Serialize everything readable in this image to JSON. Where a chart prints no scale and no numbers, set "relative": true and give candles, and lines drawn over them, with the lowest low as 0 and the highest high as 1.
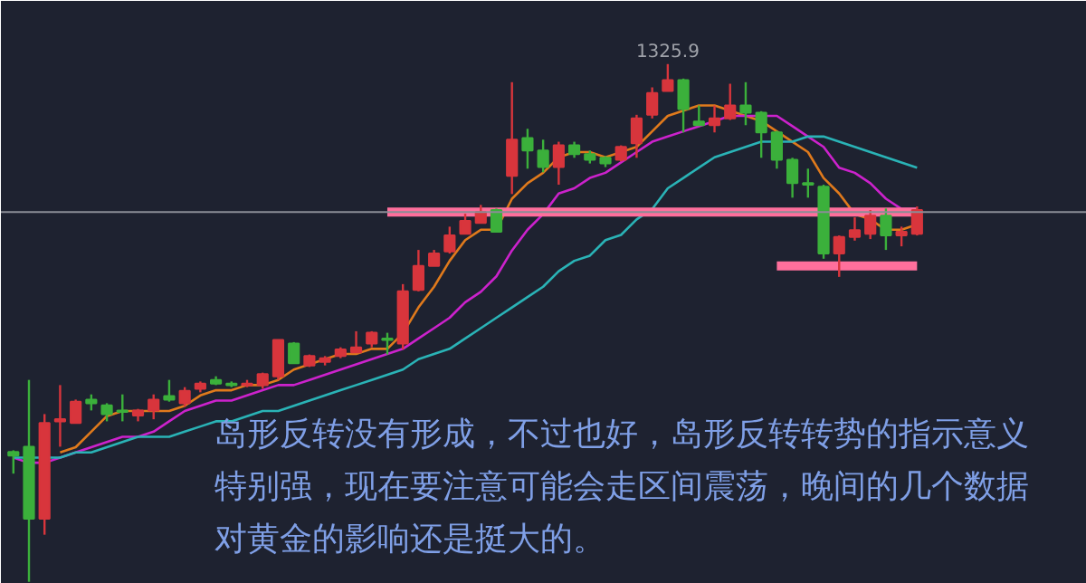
{
  "chart_data": {
    "type": "candlestick",
    "relative": true,
    "categories": [
      null,
      null,
      null,
      null,
      null,
      null,
      null,
      null,
      null,
      null,
      null,
      null,
      null,
      null,
      null,
      null,
      null,
      null,
      null,
      null,
      null,
      null,
      null,
      null,
      null,
      null,
      null,
      null,
      null,
      null,
      null,
      null,
      null,
      null,
      null,
      null,
      null,
      null,
      null,
      null,
      null,
      null,
      null,
      null,
      null,
      null,
      null,
      null,
      null,
      null,
      null,
      null,
      null,
      null,
      null,
      null,
      null,
      null,
      null
    ],
    "ohlc": [
      [
        0.251,
        0.254,
        0.209,
        0.244
      ],
      [
        0.261,
        0.39,
        0.0,
        0.122
      ],
      [
        0.122,
        0.324,
        0.091,
        0.307
      ],
      [
        0.31,
        0.38,
        0.261,
        0.314
      ],
      [
        0.307,
        0.352,
        0.307,
        0.348
      ],
      [
        0.352,
        0.362,
        0.331,
        0.345
      ],
      [
        0.341,
        0.345,
        0.31,
        0.324
      ],
      [
        0.331,
        0.362,
        0.31,
        0.328
      ],
      [
        0.321,
        0.334,
        0.31,
        0.331
      ],
      [
        0.331,
        0.362,
        0.314,
        0.352
      ],
      [
        0.359,
        0.39,
        0.348,
        0.352
      ],
      [
        0.345,
        0.376,
        0.338,
        0.369
      ],
      [
        0.373,
        0.387,
        0.366,
        0.383
      ],
      [
        0.39,
        0.397,
        0.38,
        0.383
      ],
      [
        0.383,
        0.387,
        0.376,
        0.38
      ],
      [
        0.38,
        0.39,
        0.376,
        0.383
      ],
      [
        0.38,
        0.404,
        0.373,
        0.401
      ],
      [
        0.397,
        0.467,
        0.39,
        0.467
      ],
      [
        0.46,
        0.463,
        0.422,
        0.422
      ],
      [
        0.418,
        0.439,
        0.415,
        0.436
      ],
      [
        0.425,
        0.436,
        0.418,
        0.432
      ],
      [
        0.436,
        0.453,
        0.432,
        0.449
      ],
      [
        0.443,
        0.484,
        0.443,
        0.453
      ],
      [
        0.46,
        0.484,
        0.453,
        0.481
      ],
      [
        0.47,
        0.481,
        0.439,
        0.467
      ],
      [
        0.46,
        0.575,
        0.449,
        0.561
      ],
      [
        0.564,
        0.641,
        0.561,
        0.61
      ],
      [
        0.61,
        0.641,
        0.61,
        0.634
      ],
      [
        0.638,
        0.686,
        0.634,
        0.669
      ],
      [
        0.672,
        0.711,
        0.672,
        0.697
      ],
      [
        0.693,
        0.728,
        0.693,
        0.714
      ],
      [
        0.718,
        0.721,
        0.676,
        0.676
      ],
      [
        0.784,
        0.965,
        0.749,
        0.854
      ],
      [
        0.857,
        0.875,
        0.798,
        0.833
      ],
      [
        0.833,
        0.854,
        0.791,
        0.801
      ],
      [
        0.801,
        0.85,
        0.767,
        0.843
      ],
      [
        0.843,
        0.85,
        0.819,
        0.826
      ],
      [
        0.826,
        0.833,
        0.808,
        0.815
      ],
      [
        0.819,
        0.822,
        0.801,
        0.808
      ],
      [
        0.815,
        0.843,
        0.812,
        0.84
      ],
      [
        0.847,
        0.902,
        0.819,
        0.895
      ],
      [
        0.902,
        0.955,
        0.895,
        0.944
      ],
      [
        0.948,
        1.0,
        0.948,
        0.969
      ],
      [
        0.969,
        0.972,
        0.868,
        0.913
      ],
      [
        0.889,
        0.92,
        0.882,
        0.882
      ],
      [
        0.882,
        0.92,
        0.868,
        0.895
      ],
      [
        0.895,
        0.962,
        0.892,
        0.92
      ],
      [
        0.92,
        0.965,
        0.882,
        0.906
      ],
      [
        0.906,
        0.909,
        0.819,
        0.868
      ],
      [
        0.868,
        0.871,
        0.798,
        0.815
      ],
      [
        0.815,
        0.819,
        0.742,
        0.77
      ],
      [
        0.77,
        0.798,
        0.742,
        0.767
      ],
      [
        0.763,
        0.767,
        0.624,
        0.634
      ],
      [
        0.634,
        0.669,
        0.589,
        0.666
      ],
      [
        0.666,
        0.704,
        0.659,
        0.679
      ],
      [
        0.672,
        0.718,
        0.662,
        0.707
      ],
      [
        0.707,
        0.721,
        0.641,
        0.669
      ],
      [
        0.669,
        0.686,
        0.648,
        0.676
      ],
      [
        0.672,
        0.725,
        0.669,
        0.718
      ]
    ],
    "colors": [
      "#3bb03b",
      "#3bb03b",
      "#d8353c",
      "#d8353c",
      "#d8353c",
      "#3bb03b",
      "#3bb03b",
      "#3bb03b",
      "#d8353c",
      "#d8353c",
      "#3bb03b",
      "#d8353c",
      "#d8353c",
      "#3bb03b",
      "#3bb03b",
      "#d8353c",
      "#d8353c",
      "#d8353c",
      "#3bb03b",
      "#d8353c",
      "#d8353c",
      "#d8353c",
      "#d8353c",
      "#d8353c",
      "#3bb03b",
      "#d8353c",
      "#d8353c",
      "#d8353c",
      "#d8353c",
      "#d8353c",
      "#d8353c",
      "#3bb03b",
      "#d8353c",
      "#3bb03b",
      "#3bb03b",
      "#d8353c",
      "#3bb03b",
      "#3bb03b",
      "#3bb03b",
      "#d8353c",
      "#d8353c",
      "#d8353c",
      "#d8353c",
      "#3bb03b",
      "#3bb03b",
      "#d8353c",
      "#d8353c",
      "#3bb03b",
      "#3bb03b",
      "#3bb03b",
      "#3bb03b",
      "#3bb03b",
      "#3bb03b",
      "#d8353c",
      "#d8353c",
      "#d8353c",
      "#3bb03b",
      "#d8353c",
      "#d8353c"
    ],
    "series": [
      {
        "type": "line",
        "color": "#e07a1c",
        "values": [
          null,
          null,
          null,
          0.25,
          0.26,
          0.29,
          0.32,
          0.33,
          0.33,
          0.33,
          0.33,
          0.34,
          0.36,
          0.37,
          0.37,
          0.38,
          0.38,
          0.39,
          0.41,
          0.42,
          0.43,
          0.44,
          0.44,
          0.45,
          0.45,
          0.48,
          0.53,
          0.57,
          0.62,
          0.66,
          0.68,
          0.68,
          0.74,
          0.77,
          0.79,
          0.82,
          0.83,
          0.83,
          0.82,
          0.83,
          0.84,
          0.87,
          0.9,
          0.91,
          0.92,
          0.92,
          0.91,
          0.9,
          0.89,
          0.87,
          0.85,
          0.83,
          0.78,
          0.75,
          0.71,
          0.7,
          0.68,
          0.68,
          0.69
        ]
      },
      {
        "type": "line",
        "color": "#cc22cc",
        "values": [
          0.24,
          0.23,
          0.23,
          0.24,
          0.25,
          0.26,
          0.27,
          0.28,
          0.28,
          0.29,
          0.31,
          0.33,
          0.34,
          0.35,
          0.35,
          0.36,
          0.37,
          0.38,
          0.38,
          0.39,
          0.4,
          0.41,
          0.42,
          0.43,
          0.44,
          0.45,
          0.47,
          0.49,
          0.51,
          0.54,
          0.56,
          0.59,
          0.64,
          0.68,
          0.71,
          0.75,
          0.76,
          0.78,
          0.79,
          0.81,
          0.83,
          0.85,
          0.86,
          0.87,
          0.88,
          0.89,
          0.9,
          0.9,
          0.9,
          0.9,
          0.88,
          0.86,
          0.84,
          0.8,
          0.79,
          0.77,
          0.74,
          0.72,
          0.72
        ]
      },
      {
        "type": "line",
        "color": "#2ab3b6",
        "values": [
          0.24,
          0.24,
          0.24,
          0.24,
          0.25,
          0.25,
          0.26,
          0.27,
          0.28,
          0.28,
          0.28,
          0.29,
          0.3,
          0.31,
          0.31,
          0.32,
          0.33,
          0.33,
          0.34,
          0.35,
          0.36,
          0.37,
          0.38,
          0.39,
          0.4,
          0.41,
          0.43,
          0.44,
          0.45,
          0.47,
          0.49,
          0.51,
          0.53,
          0.55,
          0.57,
          0.6,
          0.62,
          0.63,
          0.66,
          0.67,
          0.7,
          0.72,
          0.76,
          0.78,
          0.8,
          0.82,
          0.83,
          0.84,
          0.85,
          0.85,
          0.85,
          0.86,
          0.86,
          0.85,
          0.84,
          0.83,
          0.82,
          0.81,
          0.8
        ]
      },
      {
        "type": "line",
        "color": "#ff6f9c",
        "values": [
          null,
          null,
          null,
          null,
          null,
          null,
          null,
          null,
          null,
          null,
          null,
          null,
          null,
          null,
          null,
          null,
          null,
          null,
          null,
          null,
          null,
          null,
          null,
          null,
          0.714,
          0.714,
          0.714,
          0.714,
          0.714,
          0.714,
          0.714,
          0.714,
          0.714,
          0.714,
          0.714,
          0.714,
          0.714,
          0.714,
          0.714,
          0.714,
          0.714,
          0.714,
          0.714,
          0.714,
          0.714,
          0.714,
          0.714,
          0.714,
          0.714,
          0.714,
          0.714,
          0.714,
          0.714,
          0.714,
          0.714,
          0.714,
          0.714,
          0.714,
          0.714
        ]
      },
      {
        "type": "line",
        "color": "#ff6f9c",
        "values": [
          null,
          null,
          null,
          null,
          null,
          null,
          null,
          null,
          null,
          null,
          null,
          null,
          null,
          null,
          null,
          null,
          null,
          null,
          null,
          null,
          null,
          null,
          null,
          null,
          null,
          null,
          null,
          null,
          null,
          null,
          null,
          null,
          null,
          null,
          null,
          null,
          null,
          null,
          null,
          null,
          null,
          null,
          null,
          null,
          null,
          null,
          null,
          null,
          null,
          0.61,
          0.61,
          0.61,
          0.61,
          0.61,
          0.61,
          0.61,
          0.61,
          0.61,
          0.61
        ]
      }
    ],
    "ref_lines": [
      {
        "axis": "y",
        "value": 0.714,
        "color": "#8a8d96"
      }
    ],
    "annotations": [
      {
        "text": "1325.9",
        "y": 1.0
      },
      "岛形反转没有形成，不过也好，岛形反转转势的指示意义",
      "特别强，现在要注意可能会走区间震荡，晚间的几个数据",
      "对黄金的影响还是挺大的。"
    ]
  }
}
